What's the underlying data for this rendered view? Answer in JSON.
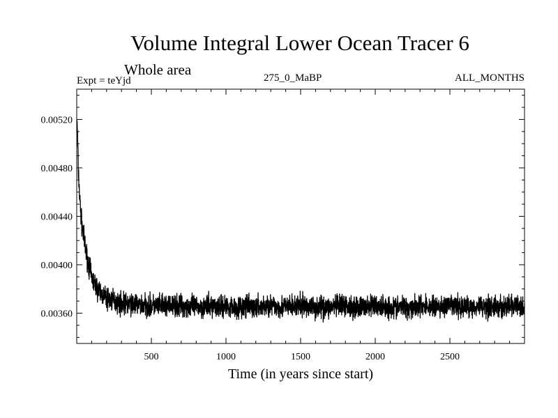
{
  "chart_data": {
    "type": "line",
    "title": "Volume Integral Lower Ocean Tracer 6",
    "subtitle": "Whole area",
    "experiment_label": "Expt = teYjd",
    "period_label": "275_0_MaBP",
    "months_label": "ALL_MONTHS",
    "xlabel": "Time (in years since start)",
    "ylabel": "",
    "xlim": [
      0,
      3000
    ],
    "ylim": [
      0.00335,
      0.00545
    ],
    "x_ticks": [
      500,
      1000,
      1500,
      2000,
      2500
    ],
    "x_tick_labels": [
      "500",
      "1000",
      "1500",
      "2000",
      "2500"
    ],
    "y_ticks": [
      0.0036,
      0.004,
      0.0044,
      0.0048,
      0.0052
    ],
    "y_tick_labels": [
      "0.00360",
      "0.00400",
      "0.00440",
      "0.00480",
      "0.00520"
    ],
    "grid": false,
    "series": [
      {
        "name": "Volume Integral Lower Ocean Tracer 6",
        "description": "Starts near 0.0052, decays rapidly to ~0.0039 by year 150, then fluctuates around ~0.00365 (range ~0.0034 to ~0.0039) through year 3000",
        "x": [
          0,
          5,
          10,
          20,
          30,
          40,
          50,
          60,
          80,
          100,
          120,
          150,
          200,
          250,
          300,
          400,
          500,
          600,
          700,
          800,
          900,
          1000,
          1100,
          1200,
          1300,
          1400,
          1500,
          1600,
          1700,
          1800,
          1900,
          2000,
          2100,
          2200,
          2300,
          2400,
          2500,
          2600,
          2700,
          2800,
          2900,
          3000
        ],
        "values": [
          0.0052,
          0.0051,
          0.0048,
          0.00455,
          0.00438,
          0.00428,
          0.0042,
          0.00412,
          0.004,
          0.0039,
          0.00384,
          0.00378,
          0.00372,
          0.0037,
          0.00368,
          0.00367,
          0.00366,
          0.00366,
          0.00366,
          0.00365,
          0.00366,
          0.00366,
          0.00365,
          0.00365,
          0.00366,
          0.00365,
          0.00366,
          0.00365,
          0.00365,
          0.00366,
          0.00365,
          0.00366,
          0.00365,
          0.00365,
          0.00366,
          0.00365,
          0.00366,
          0.00365,
          0.00366,
          0.00365,
          0.00366,
          0.00365
        ],
        "noise_amplitude": 0.0001,
        "noise_seed": 7
      }
    ]
  }
}
